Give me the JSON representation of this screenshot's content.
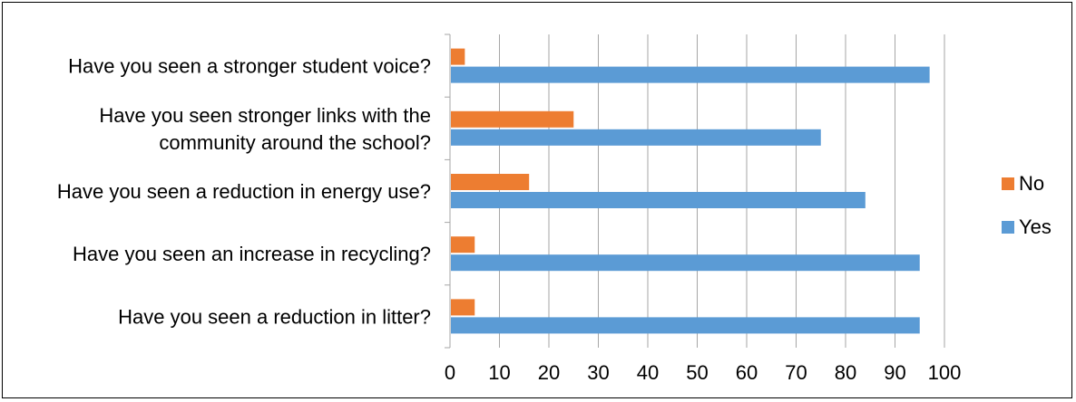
{
  "chart_data": {
    "type": "bar",
    "orientation": "horizontal",
    "categories": [
      [
        "Have you seen a stronger student voice?"
      ],
      [
        "Have you seen stronger links with the",
        "community around the school?"
      ],
      [
        "Have you seen a reduction in energy use?"
      ],
      [
        "Have you seen an increase in recycling?"
      ],
      [
        "Have you seen a reduction in litter?"
      ]
    ],
    "series": [
      {
        "name": "No",
        "color": "#ED7D31",
        "values": [
          3,
          25,
          16,
          5,
          5
        ]
      },
      {
        "name": "Yes",
        "color": "#5B9BD5",
        "values": [
          97,
          75,
          84,
          95,
          95
        ]
      }
    ],
    "xlim": [
      0,
      100
    ],
    "xticks": [
      "0",
      "10",
      "20",
      "30",
      "40",
      "50",
      "60",
      "70",
      "80",
      "90",
      "100"
    ],
    "grid": true,
    "legend": "right"
  }
}
